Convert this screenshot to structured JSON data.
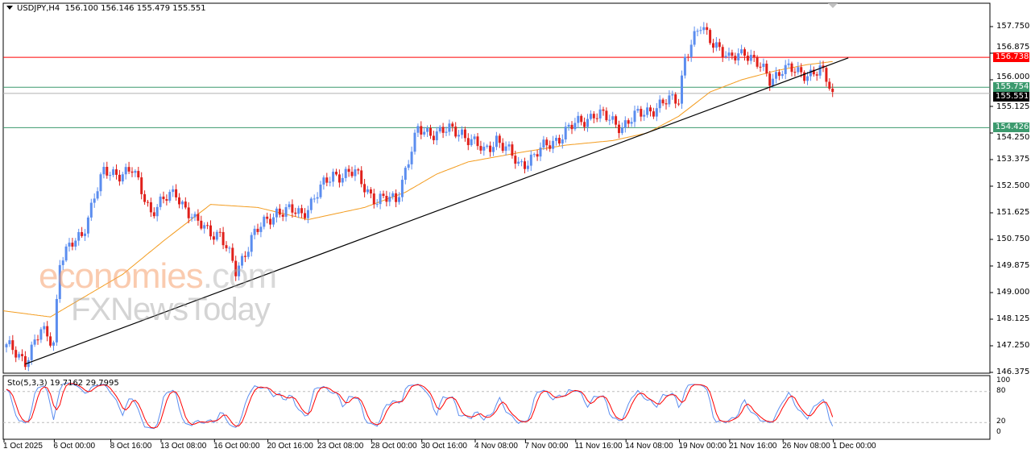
{
  "header": {
    "symbol": "USDJPY,H4",
    "ohlc": "156.100 156.146 155.479 155.551"
  },
  "stochastic": {
    "label": "Sto(5,3,3) 19.7162 29.7995",
    "levels": [
      "100",
      "80",
      "20",
      "0"
    ]
  },
  "colors": {
    "bull": "#5b8def",
    "bear": "#e0201b",
    "ma": "#f39c1f",
    "trend": "#000000",
    "stoch_main": "#5b8def",
    "stoch_signal": "#ff0000"
  },
  "chart_data": {
    "type": "candlestick",
    "symbol": "USDJPY",
    "timeframe": "H4",
    "ylim": [
      146.375,
      158.2
    ],
    "y_ticks": [
      "157.750",
      "156.875",
      "156.000",
      "155.125",
      "154.250",
      "153.375",
      "152.500",
      "151.625",
      "150.750",
      "149.875",
      "149.000",
      "148.125",
      "147.250",
      "146.375"
    ],
    "price_path": [
      [
        0,
        147.2
      ],
      [
        6,
        146.8
      ],
      [
        11,
        147.7
      ],
      [
        15,
        147.4
      ],
      [
        17,
        150.1
      ],
      [
        24,
        150.9
      ],
      [
        28,
        152.2
      ],
      [
        31,
        152.9
      ],
      [
        40,
        153.0
      ],
      [
        46,
        151.7
      ],
      [
        54,
        152.3
      ],
      [
        60,
        151.3
      ],
      [
        68,
        150.9
      ],
      [
        73,
        149.7
      ],
      [
        78,
        150.8
      ],
      [
        86,
        151.7
      ],
      [
        94,
        151.6
      ],
      [
        104,
        152.9
      ],
      [
        111,
        152.9
      ],
      [
        118,
        152.0
      ],
      [
        124,
        152.1
      ],
      [
        131,
        154.3
      ],
      [
        145,
        154.3
      ],
      [
        152,
        153.6
      ],
      [
        156,
        154.1
      ],
      [
        163,
        153.2
      ],
      [
        168,
        153.5
      ],
      [
        178,
        154.3
      ],
      [
        187,
        154.9
      ],
      [
        196,
        154.5
      ],
      [
        204,
        155.0
      ],
      [
        214,
        155.4
      ],
      [
        216,
        156.8
      ],
      [
        221,
        157.7
      ],
      [
        226,
        157.2
      ],
      [
        230,
        156.6
      ],
      [
        235,
        157.0
      ],
      [
        243,
        156.0
      ],
      [
        247,
        156.4
      ],
      [
        252,
        156.2
      ],
      [
        259,
        156.3
      ],
      [
        263,
        155.6
      ]
    ],
    "moving_average": [
      [
        -1,
        148.4
      ],
      [
        14,
        148.2
      ],
      [
        37,
        149.6
      ],
      [
        50,
        150.7
      ],
      [
        65,
        151.9
      ],
      [
        80,
        151.8
      ],
      [
        96,
        151.4
      ],
      [
        114,
        151.8
      ],
      [
        127,
        152.3
      ],
      [
        137,
        152.9
      ],
      [
        147,
        153.3
      ],
      [
        163,
        153.6
      ],
      [
        178,
        153.85
      ],
      [
        193,
        154.0
      ],
      [
        204,
        154.25
      ],
      [
        214,
        154.8
      ],
      [
        224,
        155.6
      ],
      [
        234,
        156.0
      ],
      [
        245,
        156.3
      ],
      [
        255,
        156.5
      ],
      [
        263,
        156.6
      ]
    ],
    "trendline": [
      [
        6,
        146.65
      ],
      [
        268,
        156.72
      ]
    ],
    "hlines": [
      {
        "price": "156.738",
        "color": "#ff0000"
      },
      {
        "price": "155.754",
        "color": "#3c9a6e"
      },
      {
        "price": "155.551",
        "color": "#000000"
      },
      {
        "price": "154.426",
        "color": "#3c9a6e"
      }
    ],
    "x_labels": [
      {
        "bar": 0,
        "text": "1 Oct 2025"
      },
      {
        "bar": 16,
        "text": "6 Oct 00:00"
      },
      {
        "bar": 34,
        "text": "8 Oct 16:00"
      },
      {
        "bar": 50,
        "text": "13 Oct 08:00"
      },
      {
        "bar": 67,
        "text": "16 Oct 00:00"
      },
      {
        "bar": 84,
        "text": "20 Oct 16:00"
      },
      {
        "bar": 100,
        "text": "23 Oct 08:00"
      },
      {
        "bar": 117,
        "text": "28 Oct 00:00"
      },
      {
        "bar": 133,
        "text": "30 Oct 16:00"
      },
      {
        "bar": 150,
        "text": "4 Nov 08:00"
      },
      {
        "bar": 166,
        "text": "7 Nov 00:00"
      },
      {
        "bar": 182,
        "text": "11 Nov 16:00"
      },
      {
        "bar": 198,
        "text": "14 Nov 08:00"
      },
      {
        "bar": 215,
        "text": "19 Nov 00:00"
      },
      {
        "bar": 231,
        "text": "21 Nov 16:00"
      },
      {
        "bar": 248,
        "text": "26 Nov 08:00"
      },
      {
        "bar": 264,
        "text": "1 Dec 00:00"
      }
    ]
  },
  "watermark": {
    "brand1a": "economies",
    "brand1b": ".com",
    "brand2": "FXNewsToday"
  }
}
